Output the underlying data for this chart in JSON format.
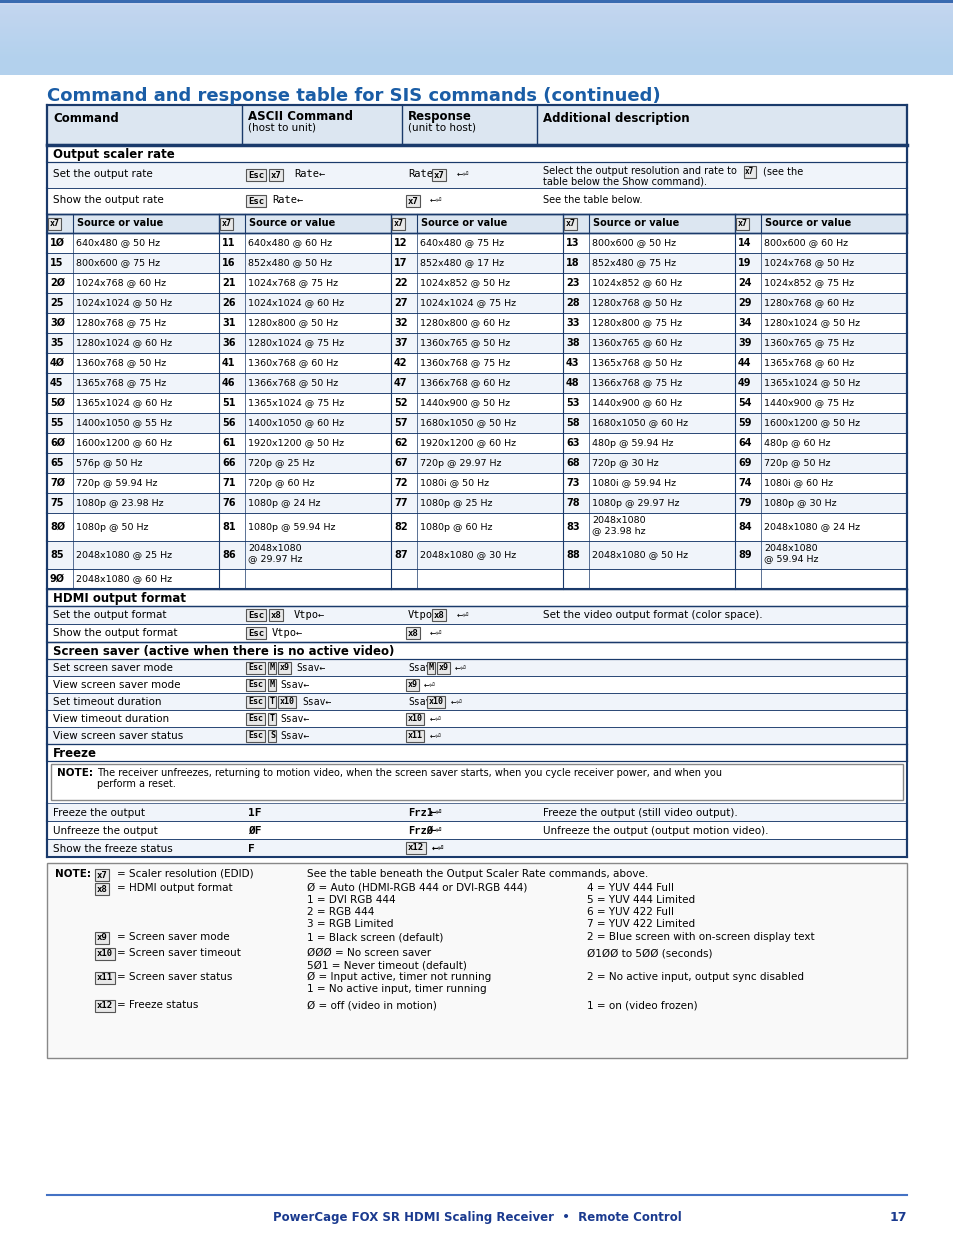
{
  "title": "Command and response table for SIS commands (continued)",
  "title_color": "#1a5da6",
  "page_bg": "#ffffff",
  "header_bg": "#dce6f1",
  "header_border": "#1a3a6b",
  "section_bg": "#dce6f1",
  "note_bg": "#ffffff",
  "table_border": "#1a3a6b",
  "row_bg_alt": "#f0f4fa",
  "row_bg": "#ffffff",
  "footer_text": "PowerCage FOX SR HDMI Scaling Receiver  •  Remote Control",
  "footer_page": "17",
  "grid_rows": [
    [
      [
        "1Ø",
        "640x480 @ 50 Hz"
      ],
      [
        "11",
        "640x480 @ 60 Hz"
      ],
      [
        "12",
        "640x480 @ 75 Hz"
      ],
      [
        "13",
        "800x600 @ 50 Hz"
      ],
      [
        "14",
        "800x600 @ 60 Hz"
      ]
    ],
    [
      [
        "15",
        "800x600 @ 75 Hz"
      ],
      [
        "16",
        "852x480 @ 50 Hz"
      ],
      [
        "17",
        "852x480 @ 17 Hz"
      ],
      [
        "18",
        "852x480 @ 75 Hz"
      ],
      [
        "19",
        "1024x768 @ 50 Hz"
      ]
    ],
    [
      [
        "2Ø",
        "1024x768 @ 60 Hz"
      ],
      [
        "21",
        "1024x768 @ 75 Hz"
      ],
      [
        "22",
        "1024x852 @ 50 Hz"
      ],
      [
        "23",
        "1024x852 @ 60 Hz"
      ],
      [
        "24",
        "1024x852 @ 75 Hz"
      ]
    ],
    [
      [
        "25",
        "1024x1024 @ 50 Hz"
      ],
      [
        "26",
        "1024x1024 @ 60 Hz"
      ],
      [
        "27",
        "1024x1024 @ 75 Hz"
      ],
      [
        "28",
        "1280x768 @ 50 Hz"
      ],
      [
        "29",
        "1280x768 @ 60 Hz"
      ]
    ],
    [
      [
        "3Ø",
        "1280x768 @ 75 Hz"
      ],
      [
        "31",
        "1280x800 @ 50 Hz"
      ],
      [
        "32",
        "1280x800 @ 60 Hz"
      ],
      [
        "33",
        "1280x800 @ 75 Hz"
      ],
      [
        "34",
        "1280x1024 @ 50 Hz"
      ]
    ],
    [
      [
        "35",
        "1280x1024 @ 60 Hz"
      ],
      [
        "36",
        "1280x1024 @ 75 Hz"
      ],
      [
        "37",
        "1360x765 @ 50 Hz"
      ],
      [
        "38",
        "1360x765 @ 60 Hz"
      ],
      [
        "39",
        "1360x765 @ 75 Hz"
      ]
    ],
    [
      [
        "4Ø",
        "1360x768 @ 50 Hz"
      ],
      [
        "41",
        "1360x768 @ 60 Hz"
      ],
      [
        "42",
        "1360x768 @ 75 Hz"
      ],
      [
        "43",
        "1365x768 @ 50 Hz"
      ],
      [
        "44",
        "1365x768 @ 60 Hz"
      ]
    ],
    [
      [
        "45",
        "1365x768 @ 75 Hz"
      ],
      [
        "46",
        "1366x768 @ 50 Hz"
      ],
      [
        "47",
        "1366x768 @ 60 Hz"
      ],
      [
        "48",
        "1366x768 @ 75 Hz"
      ],
      [
        "49",
        "1365x1024 @ 50 Hz"
      ]
    ],
    [
      [
        "5Ø",
        "1365x1024 @ 60 Hz"
      ],
      [
        "51",
        "1365x1024 @ 75 Hz"
      ],
      [
        "52",
        "1440x900 @ 50 Hz"
      ],
      [
        "53",
        "1440x900 @ 60 Hz"
      ],
      [
        "54",
        "1440x900 @ 75 Hz"
      ]
    ],
    [
      [
        "55",
        "1400x1050 @ 55 Hz"
      ],
      [
        "56",
        "1400x1050 @ 60 Hz"
      ],
      [
        "57",
        "1680x1050 @ 50 Hz"
      ],
      [
        "58",
        "1680x1050 @ 60 Hz"
      ],
      [
        "59",
        "1600x1200 @ 50 Hz"
      ]
    ],
    [
      [
        "6Ø",
        "1600x1200 @ 60 Hz"
      ],
      [
        "61",
        "1920x1200 @ 50 Hz"
      ],
      [
        "62",
        "1920x1200 @ 60 Hz"
      ],
      [
        "63",
        "480p @ 59.94 Hz"
      ],
      [
        "64",
        "480p @ 60 Hz"
      ]
    ],
    [
      [
        "65",
        "576p @ 50 Hz"
      ],
      [
        "66",
        "720p @ 25 Hz"
      ],
      [
        "67",
        "720p @ 29.97 Hz"
      ],
      [
        "68",
        "720p @ 30 Hz"
      ],
      [
        "69",
        "720p @ 50 Hz"
      ]
    ],
    [
      [
        "7Ø",
        "720p @ 59.94 Hz"
      ],
      [
        "71",
        "720p @ 60 Hz"
      ],
      [
        "72",
        "1080i @ 50 Hz"
      ],
      [
        "73",
        "1080i @ 59.94 Hz"
      ],
      [
        "74",
        "1080i @ 60 Hz"
      ]
    ],
    [
      [
        "75",
        "1080p @ 23.98 Hz"
      ],
      [
        "76",
        "1080p @ 24 Hz"
      ],
      [
        "77",
        "1080p @ 25 Hz"
      ],
      [
        "78",
        "1080p @ 29.97 Hz"
      ],
      [
        "79",
        "1080p @ 30 Hz"
      ]
    ],
    [
      [
        "8Ø",
        "1080p @ 50 Hz"
      ],
      [
        "81",
        "1080p @ 59.94 Hz"
      ],
      [
        "82",
        "1080p @ 60 Hz"
      ],
      [
        "83",
        "2048x1080\n@ 23.98 hz"
      ],
      [
        "84",
        "2048x1080 @ 24 Hz"
      ]
    ],
    [
      [
        "85",
        "2048x1080 @ 25 Hz"
      ],
      [
        "86",
        "2048x1080\n@ 29.97 Hz"
      ],
      [
        "87",
        "2048x1080 @ 30 Hz"
      ],
      [
        "88",
        "2048x1080 @ 50 Hz"
      ],
      [
        "89",
        "2048x1080\n@ 59.94 Hz"
      ]
    ],
    [
      [
        "9Ø",
        "2048x1080 @ 60 Hz"
      ],
      null,
      null,
      null,
      null
    ]
  ]
}
